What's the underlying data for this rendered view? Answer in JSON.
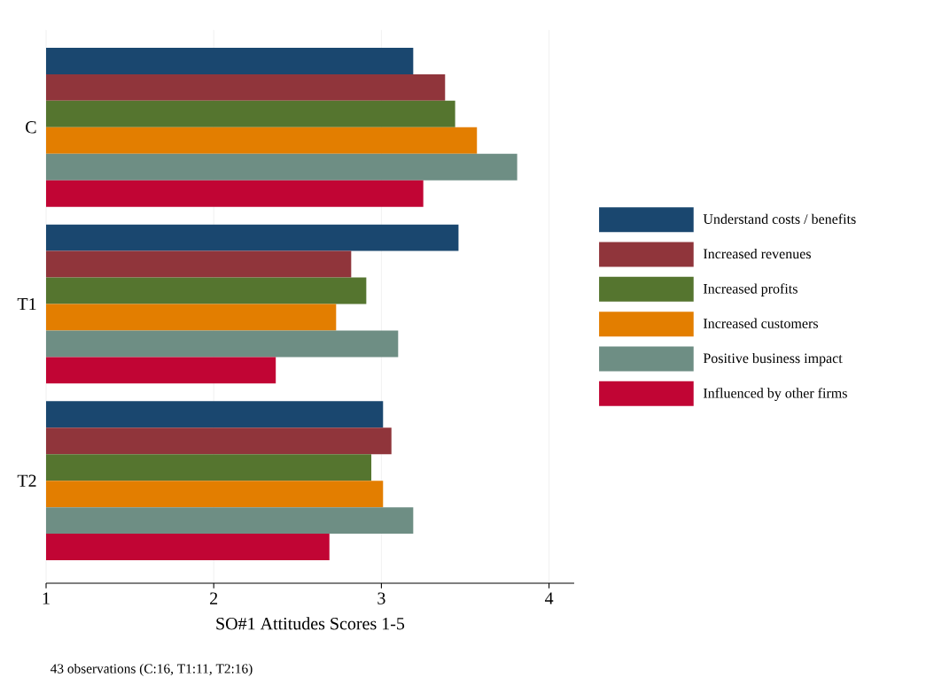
{
  "chart_data": {
    "type": "bar",
    "orientation": "horizontal",
    "xlabel": "SO#1 Attitudes Scores 1-5",
    "annotations": [
      "43 observations (C:16, T1:11, T2:16)"
    ],
    "categories": [
      "C",
      "T1",
      "T2"
    ],
    "series": [
      {
        "name": "Understand costs / benefits",
        "color": "#1a476f",
        "values": [
          3.19,
          3.46,
          3.01
        ]
      },
      {
        "name": "Increased revenues",
        "color": "#90353b",
        "values": [
          3.38,
          2.82,
          3.06
        ]
      },
      {
        "name": "Increased profits",
        "color": "#55752f",
        "values": [
          3.44,
          2.91,
          2.94
        ]
      },
      {
        "name": "Increased customers",
        "color": "#e37e00",
        "values": [
          3.57,
          2.73,
          3.01
        ]
      },
      {
        "name": "Positive business impact",
        "color": "#6e8e84",
        "values": [
          3.81,
          3.1,
          3.19
        ]
      },
      {
        "name": "Influenced by other firms",
        "color": "#c10534",
        "values": [
          3.25,
          2.37,
          2.69
        ]
      }
    ],
    "xlim": [
      1,
      4.15
    ],
    "xticks": [
      1,
      2,
      3,
      4
    ],
    "grid": "x",
    "legend": "right"
  }
}
